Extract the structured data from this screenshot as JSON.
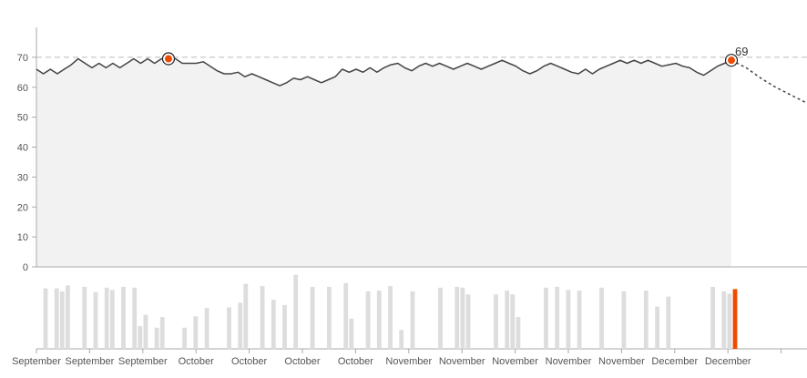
{
  "chart_data": {
    "type": "line",
    "yticks": [
      "0",
      "10",
      "20",
      "30",
      "40",
      "50",
      "60",
      "70"
    ],
    "ylim": [
      0,
      80
    ],
    "reference_value": 70,
    "grid": false,
    "annotation_label": "69",
    "line_values": [
      66,
      64.5,
      66,
      64.5,
      66,
      67.5,
      69.5,
      68,
      66.5,
      68,
      66.5,
      68,
      66.5,
      68,
      69.5,
      68,
      69.5,
      68,
      69.5,
      69.5,
      69.5,
      68,
      68,
      68,
      68.5,
      67,
      65.5,
      64.5,
      64.5,
      65,
      63.5,
      64.5,
      63.5,
      62.5,
      61.5,
      60.5,
      61.5,
      63,
      62.5,
      63.5,
      62.5,
      61.5,
      62.5,
      63.5,
      66,
      65,
      66,
      65,
      66.5,
      65,
      66.5,
      67.5,
      68,
      66.5,
      65.5,
      67,
      68,
      67,
      68,
      67,
      66,
      67,
      68,
      67,
      66,
      67,
      68,
      69,
      68,
      67,
      65.5,
      64.5,
      65.5,
      67,
      68,
      67,
      66,
      65,
      64.5,
      66,
      64.5,
      66,
      67,
      68,
      69,
      68,
      69,
      68,
      69,
      68,
      67,
      67.5,
      68,
      67,
      66.5,
      65,
      64,
      65.5,
      67,
      68,
      69
    ],
    "highlight_indices": [
      19,
      100
    ],
    "forecast_values": [
      69,
      66.5,
      63,
      60,
      57.5,
      55
    ],
    "bars": [
      80,
      0,
      80,
      76,
      84,
      0,
      0,
      82,
      0,
      75,
      0,
      81,
      78,
      0,
      82,
      0,
      81,
      30,
      45,
      0,
      28,
      42,
      0,
      0,
      0,
      28,
      0,
      43,
      0,
      54,
      0,
      0,
      0,
      55,
      0,
      61,
      86,
      0,
      0,
      83,
      0,
      65,
      0,
      58,
      0,
      98,
      0,
      0,
      82,
      0,
      0,
      82,
      0,
      0,
      87,
      40,
      0,
      0,
      76,
      0,
      77,
      0,
      83,
      0,
      25,
      0,
      76,
      0,
      0,
      0,
      0,
      81,
      0,
      0,
      82,
      81,
      72,
      0,
      0,
      0,
      0,
      72,
      0,
      77,
      72,
      42,
      0,
      0,
      0,
      0,
      81,
      0,
      82,
      0,
      78,
      0,
      77,
      0,
      0,
      0,
      81,
      0,
      0,
      0,
      76,
      0,
      0,
      0,
      77,
      0,
      56,
      0,
      69,
      0,
      0,
      0,
      0,
      0,
      0,
      0,
      82,
      0,
      76,
      73,
      79
    ],
    "bar_highlight_indices": [
      19,
      124
    ],
    "x_labels": [
      "September",
      "September",
      "September",
      "October",
      "October",
      "October",
      "October",
      "November",
      "November",
      "November",
      "November",
      "November",
      "December",
      "December"
    ],
    "colors": {
      "line": "#444444",
      "area": "#f2f2f2",
      "reference": "#bbbbbb",
      "bar": "#dddddd",
      "highlight": "#ee4a00",
      "axis": "#aaaaaa"
    }
  }
}
